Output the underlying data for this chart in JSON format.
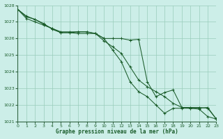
{
  "background_color": "#cceee8",
  "grid_color": "#99ccbb",
  "line_color": "#1a5c2a",
  "xlabel": "Graphe pression niveau de la mer (hPa)",
  "ylim": [
    1021,
    1028
  ],
  "xlim": [
    0,
    23
  ],
  "yticks": [
    1021,
    1022,
    1023,
    1024,
    1025,
    1026,
    1027,
    1028
  ],
  "xticks": [
    0,
    1,
    2,
    3,
    4,
    5,
    6,
    7,
    8,
    9,
    10,
    11,
    12,
    13,
    14,
    15,
    16,
    17,
    18,
    19,
    20,
    21,
    22,
    23
  ],
  "series": [
    [
      1027.75,
      1027.3,
      1027.15,
      1026.85,
      1026.6,
      1026.35,
      1026.35,
      1026.4,
      1026.4,
      1026.3,
      1026.0,
      1025.3,
      1024.6,
      1023.4,
      1022.8,
      1022.5,
      1022.0,
      1021.5,
      1021.8,
      1021.8,
      1021.8,
      1021.75,
      1021.3,
      1021.15
    ],
    [
      1027.75,
      1027.35,
      1027.15,
      1026.9,
      1026.55,
      1026.35,
      1026.35,
      1026.3,
      1026.3,
      1026.3,
      1025.85,
      1025.5,
      1025.1,
      1024.3,
      1023.5,
      1023.1,
      1022.8,
      1022.5,
      1022.1,
      1021.85,
      1021.8,
      1021.8,
      1021.85,
      1021.15
    ],
    [
      1027.75,
      1027.2,
      1027.0,
      1026.8,
      1026.6,
      1026.4,
      1026.4,
      1026.4,
      1026.4,
      1026.3,
      1026.0,
      1026.0,
      1026.0,
      1025.9,
      1025.95,
      1023.4,
      1022.5,
      1022.75,
      1022.9,
      1021.85,
      1021.85,
      1021.85,
      1021.8,
      1021.15
    ]
  ]
}
